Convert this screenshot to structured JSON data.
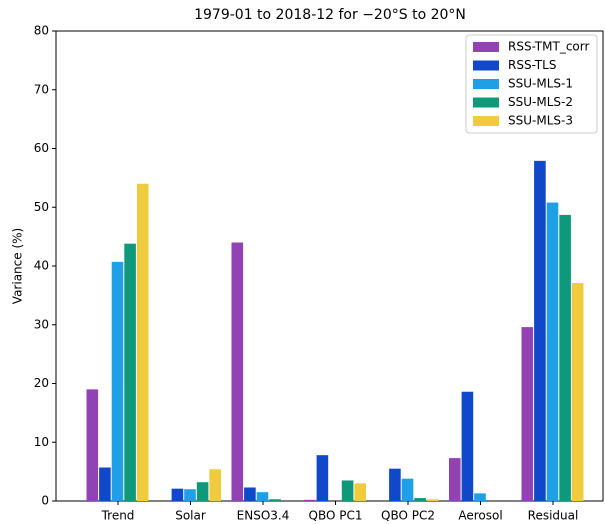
{
  "chart_data": {
    "type": "bar",
    "title": "1979-01 to 2018-12 for −20°S to 20°N",
    "y_label": "Variance (%)",
    "categories": [
      "Trend",
      "Solar",
      "ENSO3.4",
      "QBO PC1",
      "QBO PC2",
      "Aerosol",
      "Residual"
    ],
    "series": [
      {
        "name": "RSS-TMT_corr",
        "color": "#9342b3",
        "values": [
          19,
          0,
          44,
          0.2,
          0,
          7.3,
          29.6
        ]
      },
      {
        "name": "RSS-TLS",
        "color": "#1147c9",
        "values": [
          5.7,
          2.1,
          2.3,
          7.8,
          5.5,
          18.6,
          57.9
        ]
      },
      {
        "name": "SSU-MLS-1",
        "color": "#1e9fe6",
        "values": [
          40.7,
          2,
          1.5,
          0,
          3.8,
          1.3,
          50.8
        ]
      },
      {
        "name": "SSU-MLS-2",
        "color": "#0e9a7a",
        "values": [
          43.8,
          3.2,
          0.3,
          3.5,
          0.5,
          0,
          48.7
        ]
      },
      {
        "name": "SSU-MLS-3",
        "color": "#f0cb3e",
        "values": [
          54,
          5.4,
          0,
          3,
          0.3,
          0,
          37.1
        ]
      }
    ],
    "ylim": [
      0,
      80
    ],
    "yticks": [
      0,
      10,
      20,
      30,
      40,
      50,
      60,
      70,
      80
    ],
    "legend": "upper right"
  }
}
